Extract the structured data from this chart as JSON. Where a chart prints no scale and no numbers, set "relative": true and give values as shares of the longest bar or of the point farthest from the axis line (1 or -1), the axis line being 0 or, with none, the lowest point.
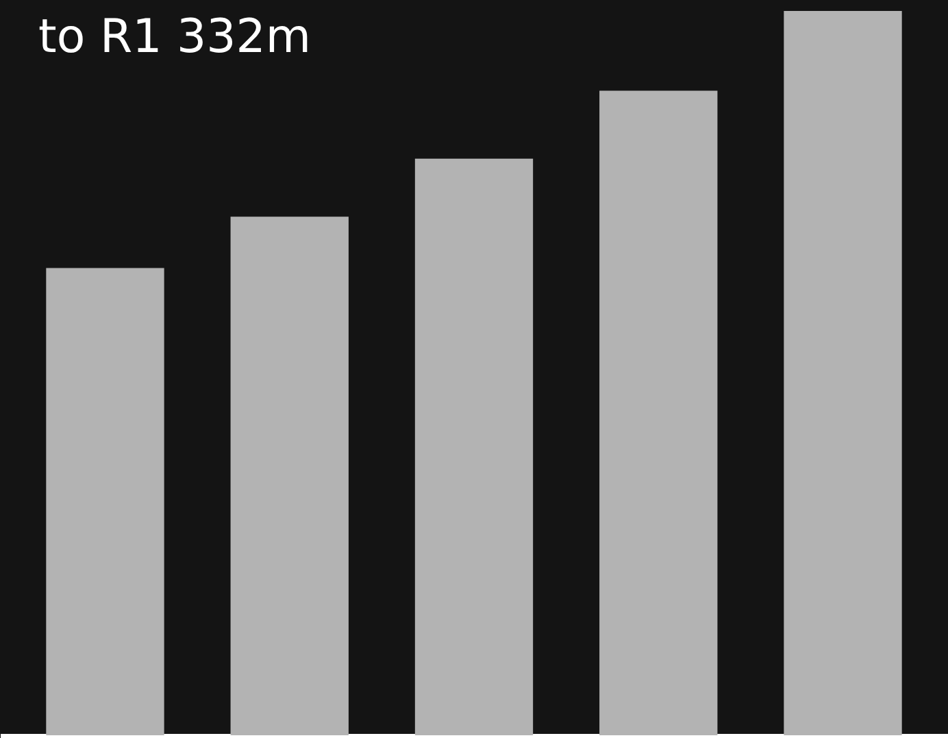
{
  "chart_data": {
    "type": "bar",
    "title": "to R1 332m",
    "categories": [
      null,
      null,
      null,
      null,
      null
    ],
    "series": [
      {
        "color": "#b3b3b3",
        "values": [
          0.645,
          0.716,
          0.796,
          0.89,
          1.0
        ]
      }
    ],
    "relative": true,
    "tick_labels": false,
    "grid": false,
    "legend": false
  }
}
